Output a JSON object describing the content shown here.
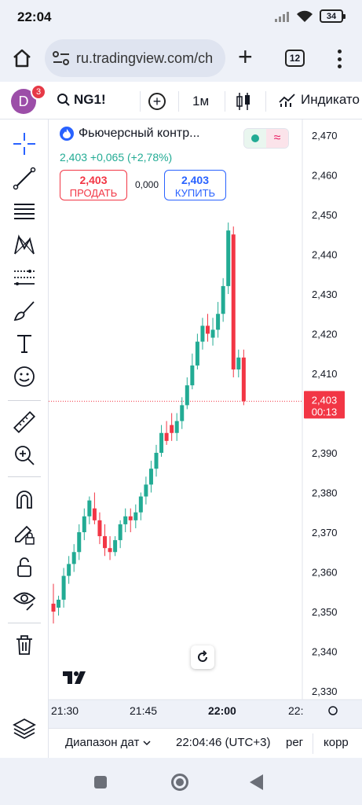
{
  "status_bar": {
    "time": "22:04",
    "battery": "34"
  },
  "browser": {
    "url": "ru.tradingview.com/ch",
    "tab_count": "12"
  },
  "toolbar": {
    "avatar_letter": "D",
    "notification_count": "3",
    "symbol": "NG1!",
    "interval": "1м",
    "indicators_label": "Индикато"
  },
  "legend": {
    "title": "Фьючерсный контр...",
    "change": "2,403 +0,065 (+2,78%)",
    "sell_price": "2,403",
    "sell_label": "ПРОДАТЬ",
    "spread": "0,000",
    "buy_price": "2,403",
    "buy_label": "КУПИТЬ"
  },
  "price_label": {
    "price": "2,403",
    "countdown": "00:13"
  },
  "bottom_bar": {
    "date_range": "Диапазон дат",
    "clock": "22:04:46 (UTC+3)",
    "session": "рег",
    "adjust": "корр"
  },
  "left_tools": [
    "crosshair-icon",
    "trend-line-icon",
    "fib-retracement-icon",
    "pattern-icon",
    "prediction-icon",
    "brush-icon",
    "text-icon",
    "emoji-icon",
    "ruler-icon",
    "zoom-in-icon",
    "magnet-icon",
    "lock-drawing-icon",
    "lock-icon",
    "eye-icon",
    "trash-icon",
    "layers-icon"
  ],
  "colors": {
    "up": "#22ab94",
    "down": "#f23645",
    "accent": "#2962ff"
  },
  "chart_data": {
    "type": "candlestick",
    "symbol": "NG1!",
    "interval": "1m",
    "x_ticks": [
      "21:30",
      "21:45",
      "22:00",
      "22:"
    ],
    "y_ticks": [
      "2,470",
      "2,460",
      "2,450",
      "2,440",
      "2,430",
      "2,420",
      "2,410",
      "2,400",
      "2,390",
      "2,380",
      "2,370",
      "2,360",
      "2,350",
      "2,340",
      "2,330"
    ],
    "ylim": [
      2.326,
      2.473
    ],
    "last_price": 2.403,
    "candles": [
      {
        "o": 2.352,
        "h": 2.357,
        "l": 2.347,
        "c": 2.35
      },
      {
        "o": 2.351,
        "h": 2.354,
        "l": 2.349,
        "c": 2.353
      },
      {
        "o": 2.353,
        "h": 2.361,
        "l": 2.351,
        "c": 2.359
      },
      {
        "o": 2.359,
        "h": 2.364,
        "l": 2.357,
        "c": 2.362
      },
      {
        "o": 2.362,
        "h": 2.367,
        "l": 2.36,
        "c": 2.365
      },
      {
        "o": 2.365,
        "h": 2.372,
        "l": 2.363,
        "c": 2.37
      },
      {
        "o": 2.37,
        "h": 2.376,
        "l": 2.368,
        "c": 2.374
      },
      {
        "o": 2.374,
        "h": 2.379,
        "l": 2.372,
        "c": 2.378
      },
      {
        "o": 2.376,
        "h": 2.38,
        "l": 2.372,
        "c": 2.373
      },
      {
        "o": 2.373,
        "h": 2.375,
        "l": 2.367,
        "c": 2.369
      },
      {
        "o": 2.369,
        "h": 2.372,
        "l": 2.364,
        "c": 2.366
      },
      {
        "o": 2.366,
        "h": 2.369,
        "l": 2.363,
        "c": 2.365
      },
      {
        "o": 2.365,
        "h": 2.369,
        "l": 2.364,
        "c": 2.368
      },
      {
        "o": 2.368,
        "h": 2.373,
        "l": 2.366,
        "c": 2.372
      },
      {
        "o": 2.372,
        "h": 2.376,
        "l": 2.37,
        "c": 2.374
      },
      {
        "o": 2.374,
        "h": 2.376,
        "l": 2.37,
        "c": 2.373
      },
      {
        "o": 2.373,
        "h": 2.377,
        "l": 2.371,
        "c": 2.375
      },
      {
        "o": 2.375,
        "h": 2.38,
        "l": 2.373,
        "c": 2.379
      },
      {
        "o": 2.379,
        "h": 2.384,
        "l": 2.377,
        "c": 2.382
      },
      {
        "o": 2.382,
        "h": 2.388,
        "l": 2.38,
        "c": 2.386
      },
      {
        "o": 2.386,
        "h": 2.392,
        "l": 2.384,
        "c": 2.39
      },
      {
        "o": 2.39,
        "h": 2.397,
        "l": 2.389,
        "c": 2.395
      },
      {
        "o": 2.395,
        "h": 2.398,
        "l": 2.392,
        "c": 2.393
      },
      {
        "o": 2.397,
        "h": 2.4,
        "l": 2.393,
        "c": 2.395
      },
      {
        "o": 2.395,
        "h": 2.4,
        "l": 2.393,
        "c": 2.398
      },
      {
        "o": 2.398,
        "h": 2.404,
        "l": 2.396,
        "c": 2.402
      },
      {
        "o": 2.402,
        "h": 2.409,
        "l": 2.401,
        "c": 2.407
      },
      {
        "o": 2.407,
        "h": 2.415,
        "l": 2.406,
        "c": 2.412
      },
      {
        "o": 2.412,
        "h": 2.42,
        "l": 2.411,
        "c": 2.418
      },
      {
        "o": 2.418,
        "h": 2.424,
        "l": 2.416,
        "c": 2.422
      },
      {
        "o": 2.422,
        "h": 2.425,
        "l": 2.418,
        "c": 2.42
      },
      {
        "o": 2.419,
        "h": 2.424,
        "l": 2.417,
        "c": 2.421
      },
      {
        "o": 2.421,
        "h": 2.428,
        "l": 2.419,
        "c": 2.425
      },
      {
        "o": 2.425,
        "h": 2.434,
        "l": 2.423,
        "c": 2.432
      },
      {
        "o": 2.432,
        "h": 2.448,
        "l": 2.43,
        "c": 2.446
      },
      {
        "o": 2.445,
        "h": 2.447,
        "l": 2.409,
        "c": 2.411
      },
      {
        "o": 2.411,
        "h": 2.416,
        "l": 2.409,
        "c": 2.414
      },
      {
        "o": 2.414,
        "h": 2.416,
        "l": 2.402,
        "c": 2.403
      }
    ]
  }
}
